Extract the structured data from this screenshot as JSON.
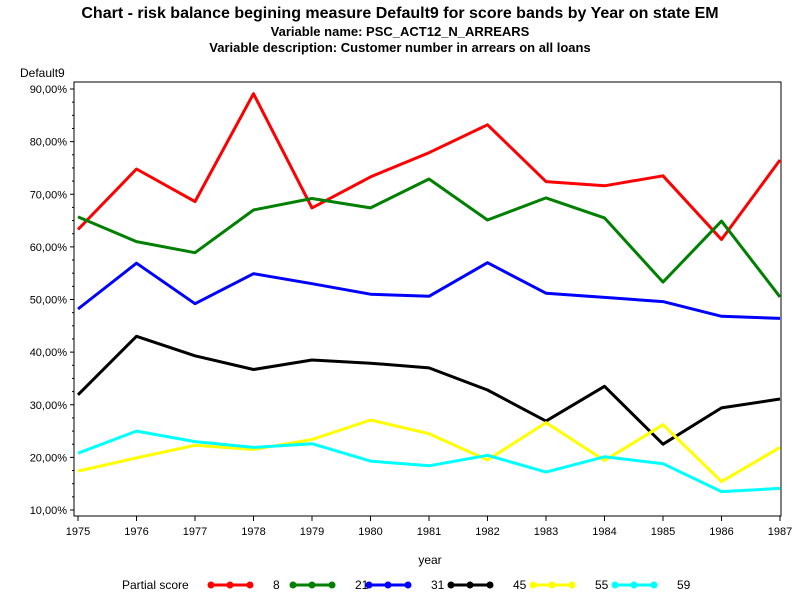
{
  "chart_data": {
    "type": "line",
    "title": "Chart - risk balance begining measure Default9 for score bands by Year on state EM",
    "subtitle": "Variable name: PSC_ACT12_N_ARREARS",
    "subtitle2": "Variable description: Customer number in arrears on all loans",
    "xlabel": "year",
    "ylabel": "Default9",
    "x": [
      "1975",
      "1976",
      "1977",
      "1978",
      "1979",
      "1980",
      "1981",
      "1982",
      "1983",
      "1984",
      "1985",
      "1986",
      "1987"
    ],
    "ylim": [
      10,
      90
    ],
    "yticks": [
      "10,00%",
      "20,00%",
      "30,00%",
      "40,00%",
      "50,00%",
      "60,00%",
      "70,00%",
      "80,00%",
      "90,00%"
    ],
    "grid": false,
    "legend_title": "Partial score",
    "legend_position": "bottom",
    "series": [
      {
        "name": "8",
        "color": "#ff0000",
        "values": [
          63.3,
          74.8,
          68.6,
          89.1,
          67.4,
          73.3,
          77.9,
          83.2,
          72.4,
          71.6,
          73.5,
          61.4,
          76.5
        ]
      },
      {
        "name": "21",
        "color": "#008000",
        "values": [
          65.7,
          61.0,
          58.9,
          67.0,
          69.2,
          67.4,
          72.9,
          65.1,
          69.3,
          65.5,
          53.3,
          64.9,
          50.5
        ]
      },
      {
        "name": "31",
        "color": "#0000ff",
        "values": [
          48.2,
          56.9,
          49.2,
          54.9,
          53.0,
          51.0,
          50.6,
          57.0,
          51.2,
          50.4,
          49.6,
          46.8,
          46.4
        ]
      },
      {
        "name": "45",
        "color": "#000000",
        "values": [
          31.9,
          43.0,
          39.3,
          36.7,
          38.5,
          37.9,
          37.0,
          32.8,
          26.9,
          33.5,
          22.5,
          29.4,
          31.1
        ]
      },
      {
        "name": "55",
        "color": "#ffff00",
        "values": [
          17.4,
          19.9,
          22.3,
          21.5,
          23.4,
          27.1,
          24.5,
          19.5,
          26.6,
          19.4,
          26.2,
          15.4,
          21.9
        ]
      },
      {
        "name": "59",
        "color": "#00ffff",
        "values": [
          20.8,
          25.0,
          23.0,
          21.9,
          22.6,
          19.3,
          18.4,
          20.4,
          17.2,
          20.1,
          18.8,
          13.5,
          14.1
        ]
      }
    ]
  }
}
